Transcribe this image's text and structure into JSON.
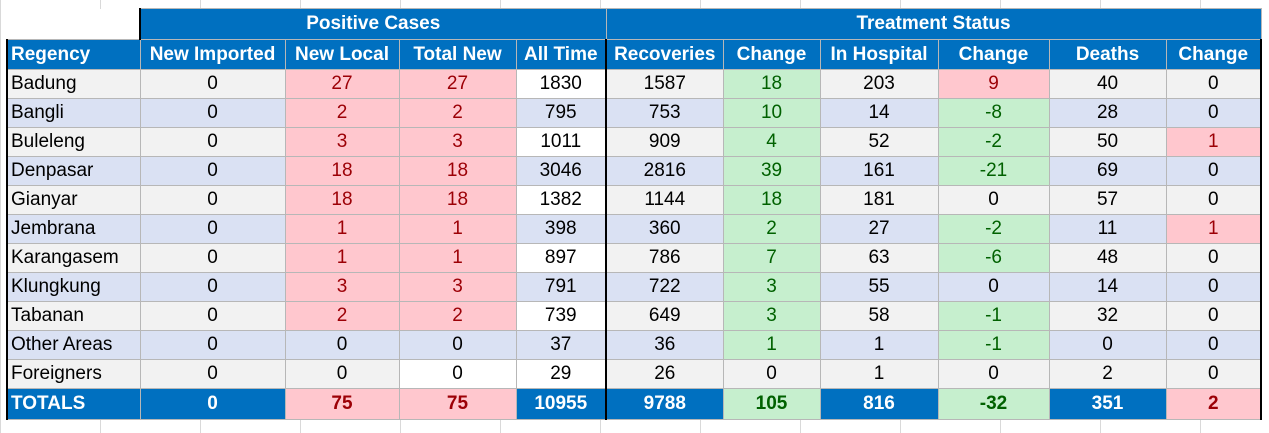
{
  "groups": {
    "positive": "Positive Cases",
    "treatment": "Treatment Status"
  },
  "headers": [
    "Regency",
    "New Imported",
    "New Local",
    "Total New",
    "All Time",
    "Recoveries",
    "Change",
    "In Hospital",
    "Change",
    "Deaths",
    "Change"
  ],
  "rows": [
    {
      "values": [
        "Badung",
        "0",
        "27",
        "27",
        "1830",
        "1587",
        "18",
        "203",
        "9",
        "40",
        "0"
      ],
      "styles": [
        "",
        "",
        "pink",
        "pink",
        "white",
        "",
        "green",
        "",
        "pink",
        "",
        ""
      ]
    },
    {
      "values": [
        "Bangli",
        "0",
        "2",
        "2",
        "795",
        "753",
        "10",
        "14",
        "-8",
        "28",
        "0"
      ],
      "styles": [
        "",
        "",
        "pink",
        "pink",
        "",
        "",
        "green",
        "",
        "green",
        "",
        ""
      ]
    },
    {
      "values": [
        "Buleleng",
        "0",
        "3",
        "3",
        "1011",
        "909",
        "4",
        "52",
        "-2",
        "50",
        "1"
      ],
      "styles": [
        "",
        "",
        "pink",
        "pink",
        "white",
        "",
        "green",
        "",
        "green",
        "",
        "pink"
      ]
    },
    {
      "values": [
        "Denpasar",
        "0",
        "18",
        "18",
        "3046",
        "2816",
        "39",
        "161",
        "-21",
        "69",
        "0"
      ],
      "styles": [
        "",
        "",
        "pink",
        "pink",
        "",
        "",
        "green",
        "",
        "green",
        "",
        ""
      ]
    },
    {
      "values": [
        "Gianyar",
        "0",
        "18",
        "18",
        "1382",
        "1144",
        "18",
        "181",
        "0",
        "57",
        "0"
      ],
      "styles": [
        "",
        "",
        "pink",
        "pink",
        "white",
        "",
        "green",
        "",
        "",
        "",
        ""
      ]
    },
    {
      "values": [
        "Jembrana",
        "0",
        "1",
        "1",
        "398",
        "360",
        "2",
        "27",
        "-2",
        "11",
        "1"
      ],
      "styles": [
        "",
        "",
        "pink",
        "pink",
        "",
        "",
        "green",
        "",
        "green",
        "",
        "pink"
      ]
    },
    {
      "values": [
        "Karangasem",
        "0",
        "1",
        "1",
        "897",
        "786",
        "7",
        "63",
        "-6",
        "48",
        "0"
      ],
      "styles": [
        "",
        "",
        "pink",
        "pink",
        "white",
        "",
        "green",
        "",
        "green",
        "",
        ""
      ]
    },
    {
      "values": [
        "Klungkung",
        "0",
        "3",
        "3",
        "791",
        "722",
        "3",
        "55",
        "0",
        "14",
        "0"
      ],
      "styles": [
        "",
        "",
        "pink",
        "pink",
        "",
        "",
        "green",
        "",
        "",
        "",
        ""
      ]
    },
    {
      "values": [
        "Tabanan",
        "0",
        "2",
        "2",
        "739",
        "649",
        "3",
        "58",
        "-1",
        "32",
        "0"
      ],
      "styles": [
        "",
        "",
        "pink",
        "pink",
        "white",
        "",
        "green",
        "",
        "green",
        "",
        ""
      ]
    },
    {
      "values": [
        "Other Areas",
        "0",
        "0",
        "0",
        "37",
        "36",
        "1",
        "1",
        "-1",
        "0",
        "0"
      ],
      "styles": [
        "",
        "",
        "",
        "",
        "",
        "",
        "green",
        "",
        "green",
        "",
        ""
      ]
    },
    {
      "values": [
        "Foreigners",
        "0",
        "0",
        "0",
        "29",
        "26",
        "0",
        "1",
        "0",
        "2",
        "0"
      ],
      "styles": [
        "",
        "",
        "",
        "white",
        "white",
        "",
        "",
        "",
        "",
        "",
        ""
      ]
    }
  ],
  "totals": {
    "values": [
      "TOTALS",
      "0",
      "75",
      "75",
      "10955",
      "9788",
      "105",
      "816",
      "-32",
      "351",
      "2"
    ],
    "styles": [
      "",
      "",
      "pink",
      "pink",
      "",
      "",
      "green",
      "",
      "green",
      "",
      "pink"
    ]
  },
  "colors": {
    "header_blue": "#0070c0",
    "increase_pink": "#ffc7ce",
    "increase_text": "#9c0006",
    "decrease_green": "#c6efce",
    "decrease_text": "#006100"
  }
}
